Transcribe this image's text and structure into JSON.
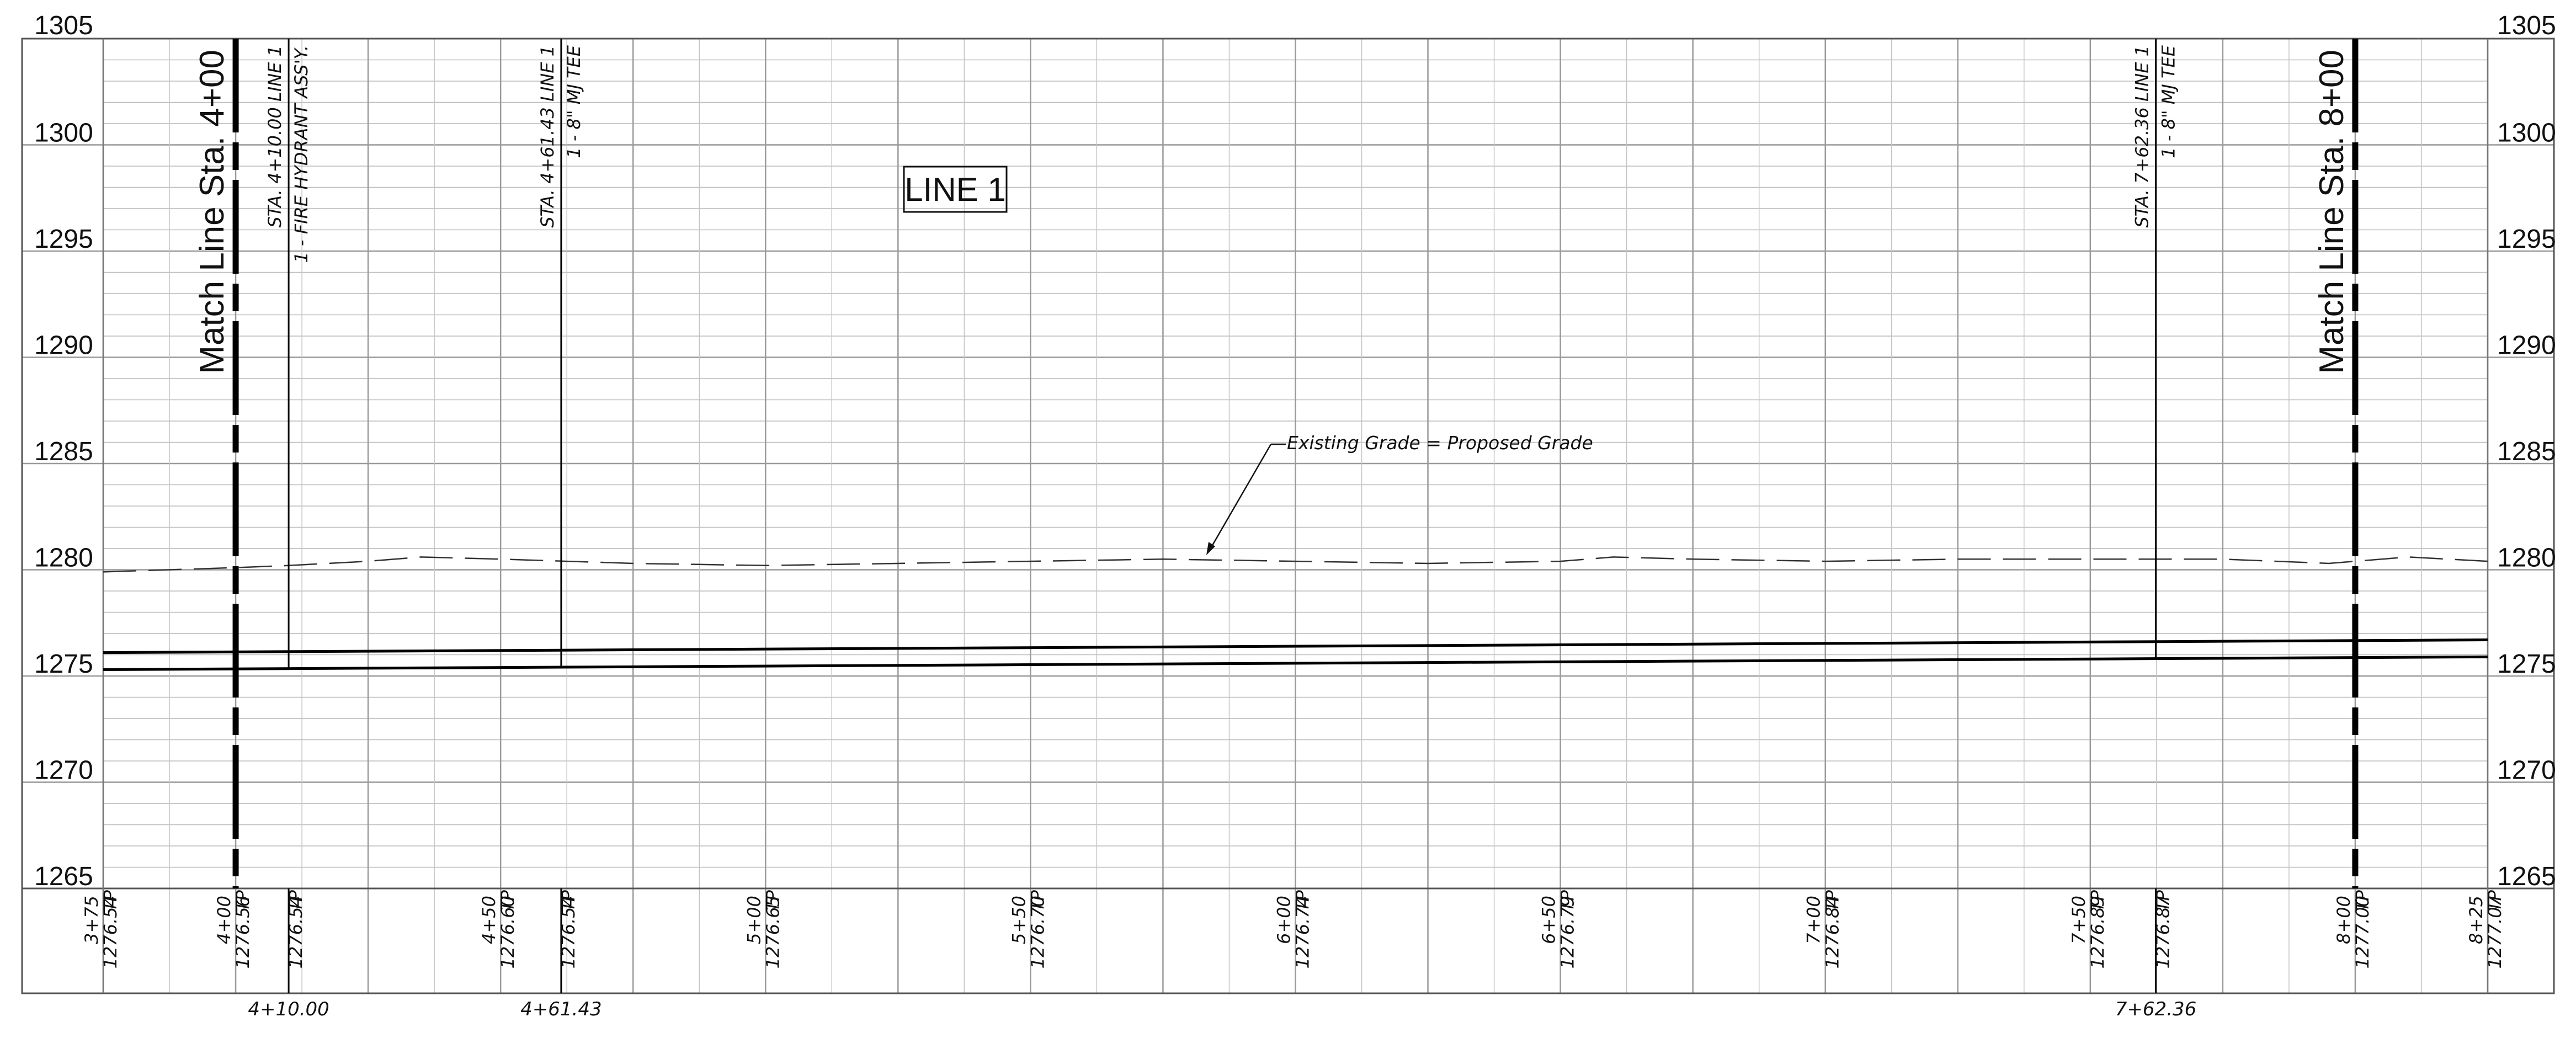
{
  "title": "LINE 1",
  "elevations": {
    "left": [
      "1305",
      "1300",
      "1295",
      "1290",
      "1285",
      "1280",
      "1275",
      "1270",
      "1265"
    ],
    "right": [
      "1305",
      "1300",
      "1295",
      "1290",
      "1285",
      "1280",
      "1275",
      "1270",
      "1265"
    ]
  },
  "match_lines": [
    {
      "station": 400,
      "label": "Match Line Sta. 4+00"
    },
    {
      "station": 800,
      "label": "Match Line Sta. 8+00"
    }
  ],
  "callouts": [
    {
      "station": 410.0,
      "line1": "STA. 4+10.00 LINE 1",
      "line2": "1 - FIRE HYDRANT ASS'Y."
    },
    {
      "station": 461.43,
      "line1": "STA. 4+61.43 LINE 1",
      "line2": "1 - 8\" MJ TEE"
    },
    {
      "station": 762.36,
      "line1": "STA. 7+62.36 LINE 1",
      "line2": "1 - 8\" MJ TEE"
    }
  ],
  "grade_note": "Existing Grade = Proposed Grade",
  "station_labels": [
    {
      "station": 375,
      "sta": "3+75",
      "elev": "1276.54",
      "tp": "TP"
    },
    {
      "station": 400,
      "sta": "4+00",
      "elev": "1276.56",
      "tp": "TP"
    },
    {
      "station": 410,
      "sta": "",
      "elev": "1276.54",
      "tp": "TP"
    },
    {
      "station": 450,
      "sta": "4+50",
      "elev": "1276.60",
      "tp": "TP"
    },
    {
      "station": 461.43,
      "sta": "",
      "elev": "1276.54",
      "tp": "TP"
    },
    {
      "station": 500,
      "sta": "5+00",
      "elev": "1276.65",
      "tp": "TP"
    },
    {
      "station": 550,
      "sta": "5+50",
      "elev": "1276.70",
      "tp": "TP"
    },
    {
      "station": 600,
      "sta": "6+00",
      "elev": "1276.74",
      "tp": "TP"
    },
    {
      "station": 650,
      "sta": "6+50",
      "elev": "1276.79",
      "tp": "TP"
    },
    {
      "station": 700,
      "sta": "7+00",
      "elev": "1276.84",
      "tp": "TP"
    },
    {
      "station": 750,
      "sta": "7+50",
      "elev": "1276.89",
      "tp": "TP"
    },
    {
      "station": 762.36,
      "sta": "",
      "elev": "1276.87",
      "tp": "TP"
    },
    {
      "station": 800,
      "sta": "8+00",
      "elev": "1277.00",
      "tp": "TP"
    },
    {
      "station": 825,
      "sta": "8+25",
      "elev": "1277.07",
      "tp": "TP"
    }
  ],
  "bottom_station_labels": [
    {
      "station": 410.0,
      "text": "4+10.00"
    },
    {
      "station": 461.43,
      "text": "4+61.43"
    },
    {
      "station": 762.36,
      "text": "7+62.36"
    }
  ],
  "pipe": {
    "top": [
      [
        375,
        1276.1
      ],
      [
        825,
        1276.7
      ]
    ],
    "bottom": [
      [
        375,
        1275.3
      ],
      [
        825,
        1275.9
      ]
    ]
  },
  "grade_profile": [
    [
      375,
      1279.9
    ],
    [
      400,
      1280.1
    ],
    [
      410,
      1280.2
    ],
    [
      425,
      1280.4
    ],
    [
      435,
      1280.6
    ],
    [
      450,
      1280.5
    ],
    [
      475,
      1280.3
    ],
    [
      500,
      1280.2
    ],
    [
      525,
      1280.3
    ],
    [
      550,
      1280.4
    ],
    [
      575,
      1280.5
    ],
    [
      600,
      1280.4
    ],
    [
      625,
      1280.3
    ],
    [
      650,
      1280.4
    ],
    [
      660,
      1280.6
    ],
    [
      675,
      1280.5
    ],
    [
      700,
      1280.4
    ],
    [
      725,
      1280.5
    ],
    [
      750,
      1280.5
    ],
    [
      775,
      1280.5
    ],
    [
      795,
      1280.3
    ],
    [
      800,
      1280.4
    ],
    [
      810,
      1280.6
    ],
    [
      825,
      1280.4
    ]
  ]
}
